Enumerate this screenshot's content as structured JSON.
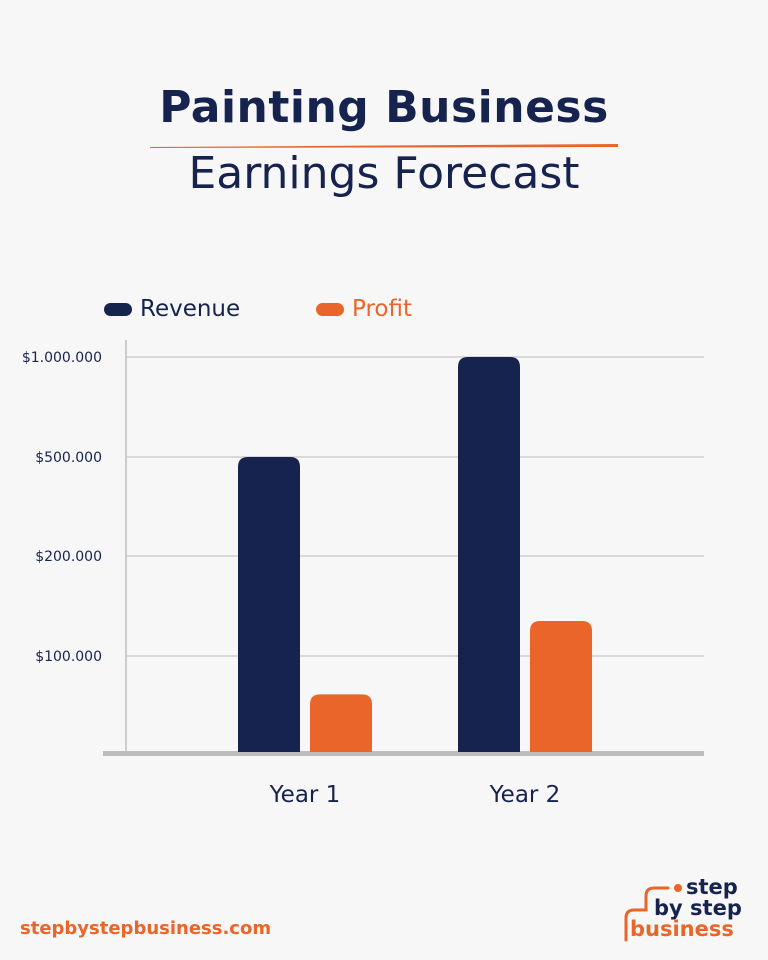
{
  "header": {
    "title_line_1": "Painting Business",
    "title_line_2": "Earnings Forecast"
  },
  "colors": {
    "navy": "#17234f",
    "orange": "#e9652a",
    "grid": "#cfcfcf",
    "axis": "#bdbdbd",
    "background": "#f7f7f7"
  },
  "chart_data": {
    "type": "bar",
    "categories": [
      "Year 1",
      "Year 2"
    ],
    "series": [
      {
        "name": "Revenue",
        "color": "#17234f",
        "values": [
          500000,
          1000000
        ]
      },
      {
        "name": "Profit",
        "color": "#e9652a",
        "values": [
          60000,
          135000
        ]
      }
    ],
    "y_ticks": [
      {
        "value": 100000,
        "label": "$100.000"
      },
      {
        "value": 200000,
        "label": "$200.000"
      },
      {
        "value": 500000,
        "label": "$500.000"
      },
      {
        "value": 1000000,
        "label": "$1.000.000"
      }
    ],
    "ylim": [
      0,
      1000000
    ],
    "y_scale": "nonlinear (ticks evenly spaced)",
    "grid": true,
    "legend_position": "top-left"
  },
  "footer": {
    "url": "stepbystepbusiness.com",
    "logo": {
      "line_1": "step",
      "line_2": "by step",
      "line_3": "business"
    }
  }
}
